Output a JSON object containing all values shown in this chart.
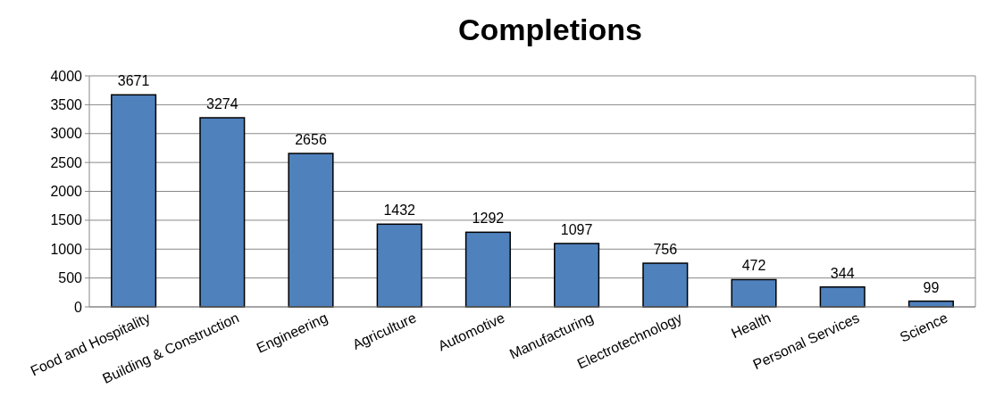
{
  "chart_data": {
    "type": "bar",
    "title": "Completions",
    "categories": [
      "Food and Hospitality",
      "Building & Construction",
      "Engineering",
      "Agriculture",
      "Automotive",
      "Manufacturing",
      "Electrotechnology",
      "Health",
      "Personal Services",
      "Science"
    ],
    "values": [
      3671,
      3274,
      2656,
      1432,
      1292,
      1097,
      756,
      472,
      344,
      99
    ],
    "color": "#4f81bd",
    "ylim": [
      0,
      4000
    ],
    "yticks": [
      0,
      500,
      1000,
      1500,
      2000,
      2500,
      3000,
      3500,
      4000
    ],
    "grid": "y",
    "data_labels": true
  }
}
